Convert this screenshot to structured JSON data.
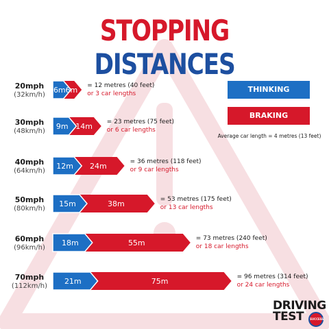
{
  "title": {
    "word1": "STOPPING",
    "word2": "DISTANCES"
  },
  "legend": {
    "thinking": "THINKING DISTANCE",
    "braking": "BRAKING DISTANCE",
    "avg_car_note": "Average car length = 4 metres (13 feet)"
  },
  "colors": {
    "thinking": "#1d6fc4",
    "braking": "#d6182a",
    "title_red": "#d6182a",
    "title_blue": "#1d4fa0"
  },
  "chart_data": {
    "type": "bar",
    "stacked": true,
    "orientation": "horizontal",
    "categories": [
      "20mph",
      "30mph",
      "40mph",
      "50mph",
      "60mph",
      "70mph"
    ],
    "category_sublabels": [
      "(32km/h)",
      "(48km/h)",
      "(64km/h)",
      "(80km/h)",
      "(96km/h)",
      "(112km/h)"
    ],
    "series": [
      {
        "name": "THINKING DISTANCE",
        "values": [
          6,
          9,
          12,
          15,
          18,
          21
        ]
      },
      {
        "name": "BRAKING DISTANCE",
        "values": [
          6,
          14,
          24,
          38,
          55,
          75
        ]
      }
    ],
    "segment_labels": [
      [
        "6m",
        "6m"
      ],
      [
        "9m",
        "14m"
      ],
      [
        "12m",
        "24m"
      ],
      [
        "15m",
        "38m"
      ],
      [
        "18m",
        "55m"
      ],
      [
        "21m",
        "75m"
      ]
    ],
    "totals": [
      {
        "line1": "= 12 metres (40 feet)",
        "line2": "or 3 car lengths"
      },
      {
        "line1": "= 23 metres (75 feet)",
        "line2": "or 6 car lengths"
      },
      {
        "line1": "= 36 metres (118 feet)",
        "line2": "or 9 car lengths"
      },
      {
        "line1": "= 53 metres (175 feet)",
        "line2": "or 13 car lengths"
      },
      {
        "line1": "= 73 metres (240 feet)",
        "line2": "or 18 car lengths"
      },
      {
        "line1": "= 96 metres (314 feet)",
        "line2": "or 24 car lengths"
      }
    ]
  },
  "logo": {
    "line1": "DRIVING",
    "line2": "TEST",
    "badge": "SUCCESS"
  }
}
